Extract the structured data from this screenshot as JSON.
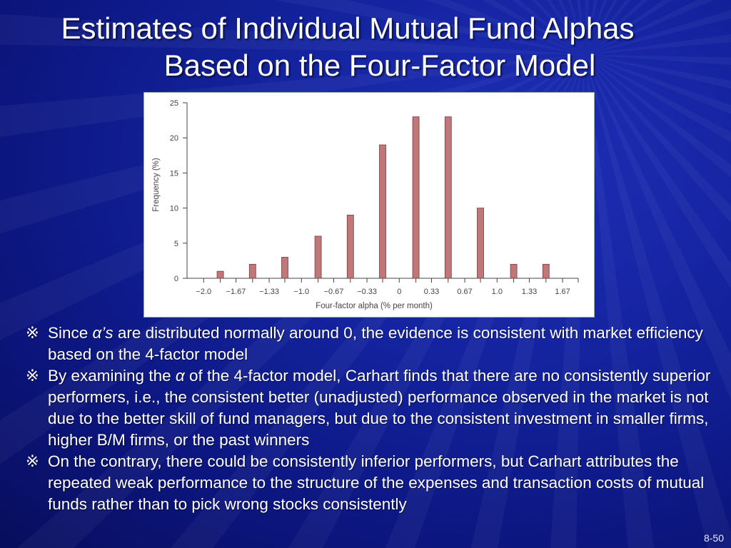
{
  "title": {
    "line1": "Estimates of Individual Mutual Fund Alphas",
    "line2": "Based on the Four-Factor Model"
  },
  "chart_data": {
    "type": "bar",
    "categories": [
      "−2.0",
      "−1.83",
      "−1.67",
      "−1.5",
      "−1.33",
      "−1.17",
      "−1.0",
      "−0.83",
      "−0.67",
      "−0.5",
      "−0.33",
      "−0.17",
      "0",
      "0.17",
      "0.33",
      "0.5",
      "0.67",
      "0.83",
      "1.0",
      "1.17",
      "1.33",
      "1.5",
      "1.67"
    ],
    "x": [
      -2.0,
      -1.83,
      -1.67,
      -1.5,
      -1.33,
      -1.17,
      -1.0,
      -0.83,
      -0.67,
      -0.5,
      -0.33,
      -0.17,
      0,
      0.17,
      0.33,
      0.5,
      0.67,
      0.83,
      1.0,
      1.17,
      1.33,
      1.5,
      1.67
    ],
    "bars": [
      {
        "x": -1.83,
        "value": 1
      },
      {
        "x": -1.5,
        "value": 2
      },
      {
        "x": -1.17,
        "value": 3
      },
      {
        "x": -0.83,
        "value": 6
      },
      {
        "x": -0.5,
        "value": 9
      },
      {
        "x": -0.17,
        "value": 19
      },
      {
        "x": 0.17,
        "value": 23
      },
      {
        "x": 0.5,
        "value": 23
      },
      {
        "x": 0.83,
        "value": 10
      },
      {
        "x": 1.17,
        "value": 2
      },
      {
        "x": 1.5,
        "value": 2
      }
    ],
    "xtick_labels": [
      "−2.0",
      "−1.67",
      "−1.33",
      "−1.0",
      "−0.67",
      "−0.33",
      "0",
      "0.33",
      "0.67",
      "1.0",
      "1.33",
      "1.67"
    ],
    "xtick_values": [
      -2.0,
      -1.67,
      -1.33,
      -1.0,
      -0.67,
      -0.33,
      0,
      0.33,
      0.67,
      1.0,
      1.33,
      1.67
    ],
    "yticks": [
      0,
      5,
      10,
      15,
      20,
      25
    ],
    "ylim": [
      0,
      25
    ],
    "xlim": [
      -2.0,
      1.67
    ],
    "xlabel": "Four-factor alpha (% per month)",
    "ylabel": "Frequency (%)",
    "bar_color": "#c0777a",
    "grid": false
  },
  "bullets": [
    {
      "mark": "※",
      "parts": [
        {
          "t": "Since "
        },
        {
          "t": "α’s",
          "i": true
        },
        {
          "t": " are distributed normally around 0, the evidence is consistent with market efficiency based on the 4-factor model"
        }
      ]
    },
    {
      "mark": "※",
      "parts": [
        {
          "t": "By examining the "
        },
        {
          "t": "α",
          "i": true
        },
        {
          "t": " of the 4-factor model, Carhart finds that there are no consistently superior performers, i.e., the consistent better (unadjusted) performance observed in the market is not due to the better skill of fund managers, but due to the consistent investment in smaller firms, higher B/M firms, or the past winners"
        }
      ]
    },
    {
      "mark": "※",
      "parts": [
        {
          "t": "On the contrary, there could be consistently inferior performers, but Carhart attributes the repeated weak performance to the structure of the expenses and transaction costs of mutual funds rather than to pick wrong stocks consistently"
        }
      ]
    }
  ],
  "slide_number": "8-50"
}
